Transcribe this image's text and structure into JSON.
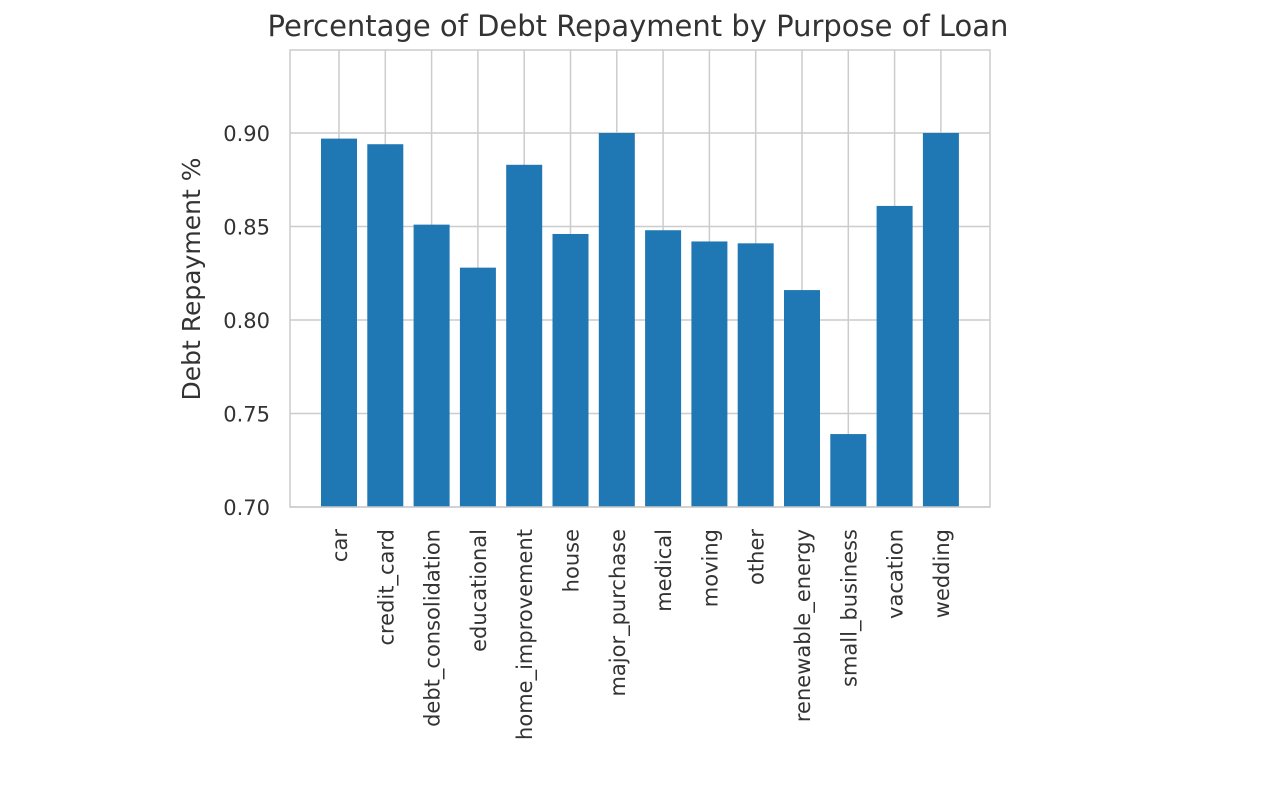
{
  "chart_data": {
    "type": "bar",
    "title": "Percentage of Debt Repayment by Purpose of Loan",
    "xlabel": "",
    "ylabel": "Debt Repayment %",
    "categories": [
      "car",
      "credit_card",
      "debt_consolidation",
      "educational",
      "home_improvement",
      "house",
      "major_purchase",
      "medical",
      "moving",
      "other",
      "renewable_energy",
      "small_business",
      "vacation",
      "wedding"
    ],
    "values": [
      0.897,
      0.894,
      0.851,
      0.828,
      0.883,
      0.846,
      0.9,
      0.848,
      0.842,
      0.841,
      0.816,
      0.739,
      0.861,
      0.9
    ],
    "ylim": [
      0.7,
      0.943
    ],
    "yticks": [
      "0.70",
      "0.75",
      "0.80",
      "0.85",
      "0.90"
    ],
    "ytick_values": [
      0.7,
      0.75,
      0.8,
      0.85,
      0.9
    ],
    "grid": true,
    "bar_color": "#1f77b4",
    "grid_color": "#cccccc",
    "frame_color": "#cccccc"
  }
}
